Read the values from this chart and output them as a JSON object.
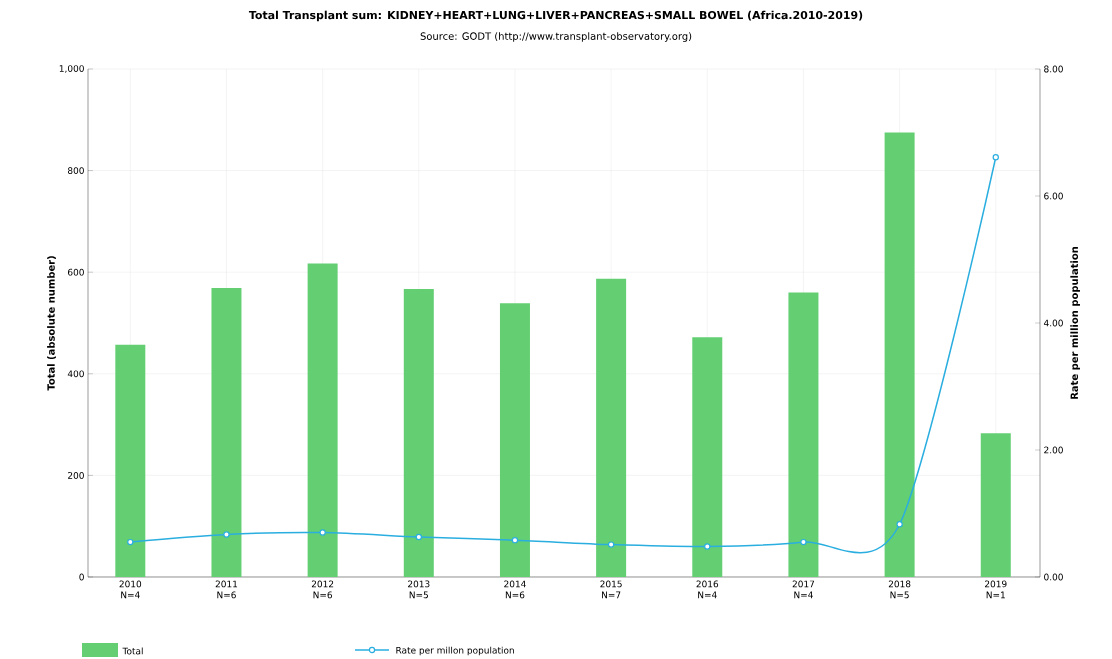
{
  "chart_data": {
    "type": "bar",
    "title": "Total Transplant sum: KIDNEY+HEART+LUNG+LIVER+PANCREAS+SMALL BOWEL (Africa.2010-2019)",
    "subtitle": "Source: GODT (http://www.transplant-observatory.org)",
    "categories": [
      "2010 N=4",
      "2011 N=6",
      "2012 N=6",
      "2013 N=5",
      "2014 N=6",
      "2015 N=7",
      "2016 N=4",
      "2017 N=4",
      "2018 N=5",
      "2019 N=1"
    ],
    "series": [
      {
        "name": "Total",
        "color": "#63cf72",
        "values": [
          457,
          569,
          617,
          567,
          539,
          587,
          472,
          560,
          875,
          283
        ]
      },
      {
        "name": "Rate per millon population",
        "type": "line",
        "axis": "y2",
        "color": "#2aaee0",
        "values": [
          0.55,
          0.67,
          0.7,
          0.63,
          0.58,
          0.51,
          0.48,
          0.55,
          0.83,
          6.61
        ]
      }
    ],
    "ylabel": "Total (absolute number)",
    "y2label": "Rate per million population",
    "ylim": [
      0,
      1000
    ],
    "yticks": [
      0,
      200,
      400,
      600,
      800,
      {
        "value": 1000,
        "label": "1,000"
      }
    ],
    "y2lim": [
      0,
      8
    ],
    "y2ticks": [
      {
        "value": 0,
        "label": "0.00"
      },
      {
        "value": 2,
        "label": "2.00"
      },
      {
        "value": 4,
        "label": "4.00"
      },
      {
        "value": 6,
        "label": "6.00"
      },
      {
        "value": 8,
        "label": "8.00"
      }
    ],
    "grid": true,
    "legend": "bottom",
    "marker": "circle",
    "line_style": "solid"
  }
}
